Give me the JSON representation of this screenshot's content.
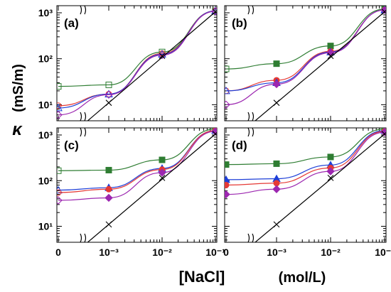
{
  "chart_data": [
    {
      "type": "line",
      "panel_label": "(a)",
      "x_scale": "log with zero break",
      "y_scale": "log",
      "x_tick_labels": [
        "0",
        "10⁻³",
        "10⁻²",
        "10⁻¹"
      ],
      "y_tick_labels": [
        "10¹",
        "10²",
        "10³"
      ],
      "series": [
        {
          "color": "#2e7d32",
          "marker": "square-open",
          "points": [
            [
              0,
              25
            ],
            [
              0.001,
              27
            ],
            [
              0.01,
              140
            ],
            [
              0.1,
              1100
            ]
          ]
        },
        {
          "color": "#e53935",
          "marker": "circle-open",
          "points": [
            [
              0,
              9.5
            ],
            [
              0.001,
              17
            ],
            [
              0.01,
              130
            ],
            [
              0.1,
              1100
            ]
          ]
        },
        {
          "color": "#1e3fd8",
          "marker": "triangle-open",
          "points": [
            [
              0,
              8.5
            ],
            [
              0.001,
              17
            ],
            [
              0.01,
              125
            ],
            [
              0.1,
              1100
            ]
          ]
        },
        {
          "color": "#9c27b0",
          "marker": "diamond-open",
          "points": [
            [
              0,
              6
            ],
            [
              0.001,
              16.5
            ],
            [
              0.01,
              120
            ],
            [
              0.1,
              1080
            ]
          ]
        },
        {
          "color": "#000000",
          "marker": "cross",
          "points": [
            [
              0.001,
              11
            ],
            [
              0.01,
              115
            ],
            [
              0.1,
              1050
            ]
          ]
        }
      ]
    },
    {
      "type": "line",
      "panel_label": "(b)",
      "x_scale": "log with zero break",
      "y_scale": "log",
      "x_tick_labels": [
        "0",
        "10⁻³",
        "10⁻²",
        "10⁻¹"
      ],
      "y_tick_labels": [
        "10¹",
        "10²",
        "10³"
      ],
      "series": [
        {
          "color": "#2e7d32",
          "marker": "square-mixed",
          "points": [
            [
              0,
              60
            ],
            [
              0.001,
              78
            ],
            [
              0.01,
              190
            ],
            [
              0.1,
              1200
            ]
          ]
        },
        {
          "color": "#e53935",
          "marker": "circle-mixed",
          "points": [
            [
              0,
              20
            ],
            [
              0.001,
              34
            ],
            [
              0.01,
              145
            ],
            [
              0.1,
              1150
            ]
          ]
        },
        {
          "color": "#1e3fd8",
          "marker": "triangle-mixed",
          "points": [
            [
              0,
              20
            ],
            [
              0.001,
              30
            ],
            [
              0.01,
              140
            ],
            [
              0.1,
              1150
            ]
          ]
        },
        {
          "color": "#9c27b0",
          "marker": "diamond-mixed",
          "points": [
            [
              0,
              10
            ],
            [
              0.001,
              28
            ],
            [
              0.01,
              135
            ],
            [
              0.1,
              1150
            ]
          ]
        },
        {
          "color": "#000000",
          "marker": "cross",
          "points": [
            [
              0.001,
              11
            ],
            [
              0.01,
              115
            ],
            [
              0.1,
              1050
            ]
          ]
        }
      ]
    },
    {
      "type": "line",
      "panel_label": "(c)",
      "x_scale": "log with zero break",
      "y_scale": "log",
      "x_tick_labels": [
        "0",
        "10⁻³",
        "10⁻²",
        "10⁻¹"
      ],
      "y_tick_labels": [
        "10¹",
        "10²",
        "10³"
      ],
      "series": [
        {
          "color": "#2e7d32",
          "marker": "square-mixed",
          "points": [
            [
              0,
              165
            ],
            [
              0.001,
              170
            ],
            [
              0.01,
              285
            ],
            [
              0.1,
              1350
            ]
          ]
        },
        {
          "color": "#1e3fd8",
          "marker": "triangle-mixed",
          "points": [
            [
              0,
              62
            ],
            [
              0.001,
              70
            ],
            [
              0.01,
              185
            ],
            [
              0.1,
              1250
            ]
          ]
        },
        {
          "color": "#e53935",
          "marker": "circle-mixed",
          "points": [
            [
              0,
              55
            ],
            [
              0.001,
              65
            ],
            [
              0.01,
              175
            ],
            [
              0.1,
              1250
            ]
          ]
        },
        {
          "color": "#9c27b0",
          "marker": "diamond-mixed",
          "points": [
            [
              0,
              37
            ],
            [
              0.001,
              42
            ],
            [
              0.01,
              150
            ],
            [
              0.1,
              1200
            ]
          ]
        },
        {
          "color": "#000000",
          "marker": "cross",
          "points": [
            [
              0.001,
              11
            ],
            [
              0.01,
              115
            ],
            [
              0.1,
              1050
            ]
          ]
        }
      ]
    },
    {
      "type": "line",
      "panel_label": "(d)",
      "x_scale": "log with zero break",
      "y_scale": "log",
      "x_tick_labels": [
        "0",
        "10⁻³",
        "10⁻²",
        "10⁻¹"
      ],
      "y_tick_labels": [
        "10¹",
        "10²",
        "10³"
      ],
      "series": [
        {
          "color": "#2e7d32",
          "marker": "square-filled",
          "points": [
            [
              0,
              225
            ],
            [
              0.001,
              235
            ],
            [
              0.01,
              330
            ],
            [
              0.1,
              1350
            ]
          ]
        },
        {
          "color": "#1e3fd8",
          "marker": "triangle-filled",
          "points": [
            [
              0,
              105
            ],
            [
              0.001,
              110
            ],
            [
              0.01,
              220
            ],
            [
              0.1,
              1250
            ]
          ]
        },
        {
          "color": "#e53935",
          "marker": "circle-filled",
          "points": [
            [
              0,
              80
            ],
            [
              0.001,
              88
            ],
            [
              0.01,
              190
            ],
            [
              0.1,
              1200
            ]
          ]
        },
        {
          "color": "#9c27b0",
          "marker": "diamond-filled",
          "points": [
            [
              0,
              50
            ],
            [
              0.001,
              65
            ],
            [
              0.01,
              160
            ],
            [
              0.1,
              1150
            ]
          ]
        },
        {
          "color": "#000000",
          "marker": "cross",
          "points": [
            [
              0.001,
              11
            ],
            [
              0.01,
              115
            ],
            [
              0.1,
              1050
            ]
          ]
        }
      ]
    }
  ],
  "axes": {
    "ylabel_symbol": "κ",
    "ylabel_unit": "(mS/m)",
    "xlabel_main": "[NaCl]",
    "xlabel_unit": "(mol/L)"
  }
}
